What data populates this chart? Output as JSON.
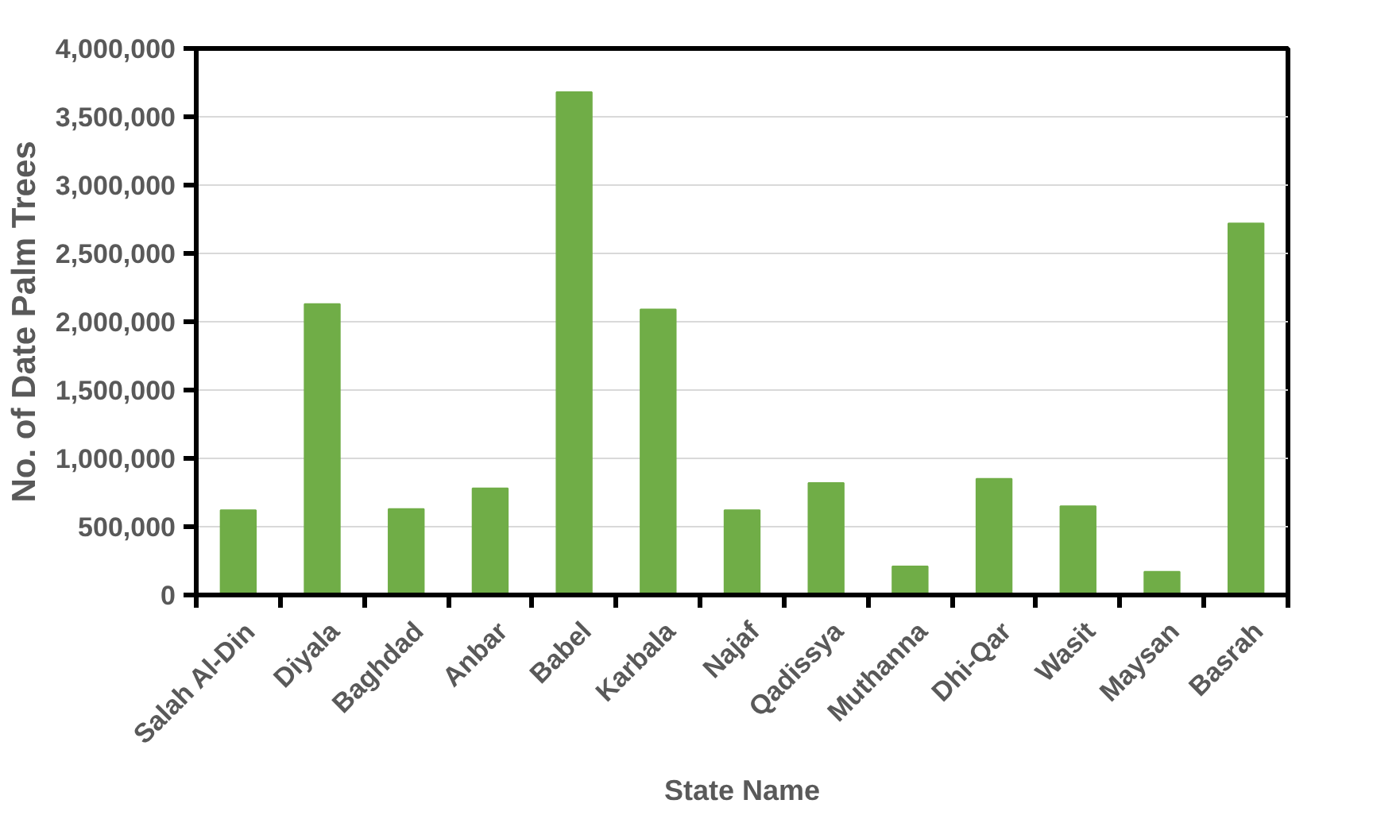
{
  "chart_data": {
    "type": "bar",
    "xlabel": "State Name",
    "ylabel": "No. of Date Palm Trees",
    "categories": [
      "Salah Al-Din",
      "Diyala",
      "Baghdad",
      "Anbar",
      "Babel",
      "Karbala",
      "Najaf",
      "Qadissya",
      "Muthanna",
      "Dhi-Qar",
      "Wasit",
      "Maysan",
      "Basrah"
    ],
    "values": [
      620000,
      2130000,
      630000,
      780000,
      3680000,
      2090000,
      620000,
      820000,
      210000,
      850000,
      650000,
      170000,
      2720000
    ],
    "color": "#70ad47",
    "ylim": [
      0,
      4000000
    ],
    "yticks": [
      {
        "value": 0,
        "label": "0"
      },
      {
        "value": 500000,
        "label": "500,000"
      },
      {
        "value": 1000000,
        "label": "1,000,000"
      },
      {
        "value": 1500000,
        "label": "1,500,000"
      },
      {
        "value": 2000000,
        "label": "2,000,000"
      },
      {
        "value": 2500000,
        "label": "2,500,000"
      },
      {
        "value": 3000000,
        "label": "3,000,000"
      },
      {
        "value": 3500000,
        "label": "3,500,000"
      },
      {
        "value": 4000000,
        "label": "4,000,000"
      }
    ],
    "grid": "y"
  }
}
